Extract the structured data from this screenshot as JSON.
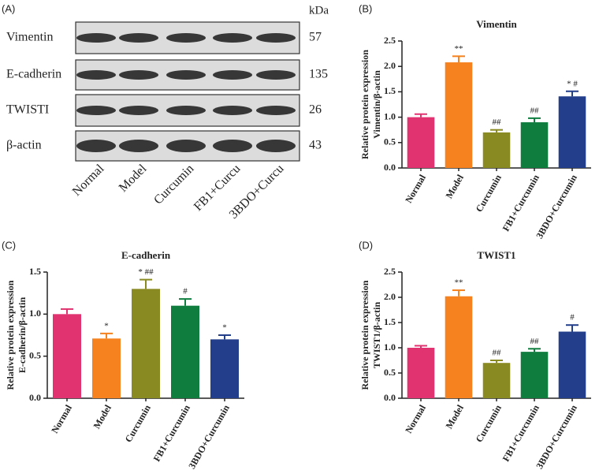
{
  "blot": {
    "panel": "(A)",
    "unit": "kDa",
    "rows": [
      {
        "protein": "Vimentin",
        "kda": 57
      },
      {
        "protein": "E-cadherin",
        "kda": 135
      },
      {
        "protein": "TWISTI",
        "kda": 26
      },
      {
        "protein": "β-actin",
        "kda": 43
      }
    ],
    "lanes": [
      "Normal",
      "Model",
      "Curcumin",
      "FB1+Curcu",
      "3BDO+Curcu"
    ]
  },
  "chart_data": [
    {
      "type": "bar",
      "panel": "(B)",
      "title": "Vimentin",
      "ylabel": [
        "Relative protein expression",
        "Vimentin/β-actin"
      ],
      "categories": [
        "Normal",
        "Model",
        "Curcumin",
        "FB1+Curcumin",
        "3BDO+Curcumin"
      ],
      "values": [
        1.0,
        2.08,
        0.7,
        0.9,
        1.41
      ],
      "errors": [
        0.06,
        0.12,
        0.05,
        0.08,
        0.1
      ],
      "annotations": [
        null,
        "**",
        "##",
        "##",
        "* #"
      ],
      "colors": [
        "#e0336f",
        "#f5821f",
        "#8a8a22",
        "#0e7d3e",
        "#233e8b"
      ],
      "ylim": [
        0,
        2.5
      ],
      "yticks": [
        {
          "value": 0,
          "label": "0.0"
        },
        0.5,
        {
          "value": 1,
          "label": "1.0"
        },
        1.5,
        {
          "value": 2,
          "label": "2.0"
        },
        2.5
      ]
    },
    {
      "type": "bar",
      "panel": "(C)",
      "title": "E-cadherin",
      "ylabel": [
        "Relative protein expression",
        "E-cadherin/β-actin"
      ],
      "categories": [
        "Normal",
        "Model",
        "Curcumin",
        "FB1+Curcumin",
        "3BDO+Curcumin"
      ],
      "values": [
        1.0,
        0.71,
        1.3,
        1.1,
        0.7
      ],
      "errors": [
        0.06,
        0.06,
        0.11,
        0.08,
        0.05
      ],
      "annotations": [
        null,
        "*",
        "* ##",
        "#",
        "*"
      ],
      "colors": [
        "#e0336f",
        "#f5821f",
        "#8a8a22",
        "#0e7d3e",
        "#233e8b"
      ],
      "ylim": [
        0,
        1.5
      ],
      "yticks": [
        {
          "value": 0,
          "label": "0.0"
        },
        0.5,
        {
          "value": 1,
          "label": "1.0"
        },
        1.5
      ]
    },
    {
      "type": "bar",
      "panel": "(D)",
      "title": "TWIST1",
      "ylabel": [
        "Relative protein expression",
        "TWIST1/β-actin"
      ],
      "categories": [
        "Normal",
        "Model",
        "Curcumin",
        "FB1+Curcumin",
        "3BDO+Curcumin"
      ],
      "values": [
        1.0,
        2.02,
        0.7,
        0.92,
        1.32
      ],
      "errors": [
        0.04,
        0.12,
        0.05,
        0.06,
        0.13
      ],
      "annotations": [
        null,
        "**",
        "##",
        "##",
        "#"
      ],
      "colors": [
        "#e0336f",
        "#f5821f",
        "#8a8a22",
        "#0e7d3e",
        "#233e8b"
      ],
      "ylim": [
        0,
        2.5
      ],
      "yticks": [
        {
          "value": 0,
          "label": "0.0"
        },
        0.5,
        {
          "value": 1,
          "label": "1.0"
        },
        1.5,
        {
          "value": 2,
          "label": "2.0"
        },
        2.5
      ]
    }
  ]
}
